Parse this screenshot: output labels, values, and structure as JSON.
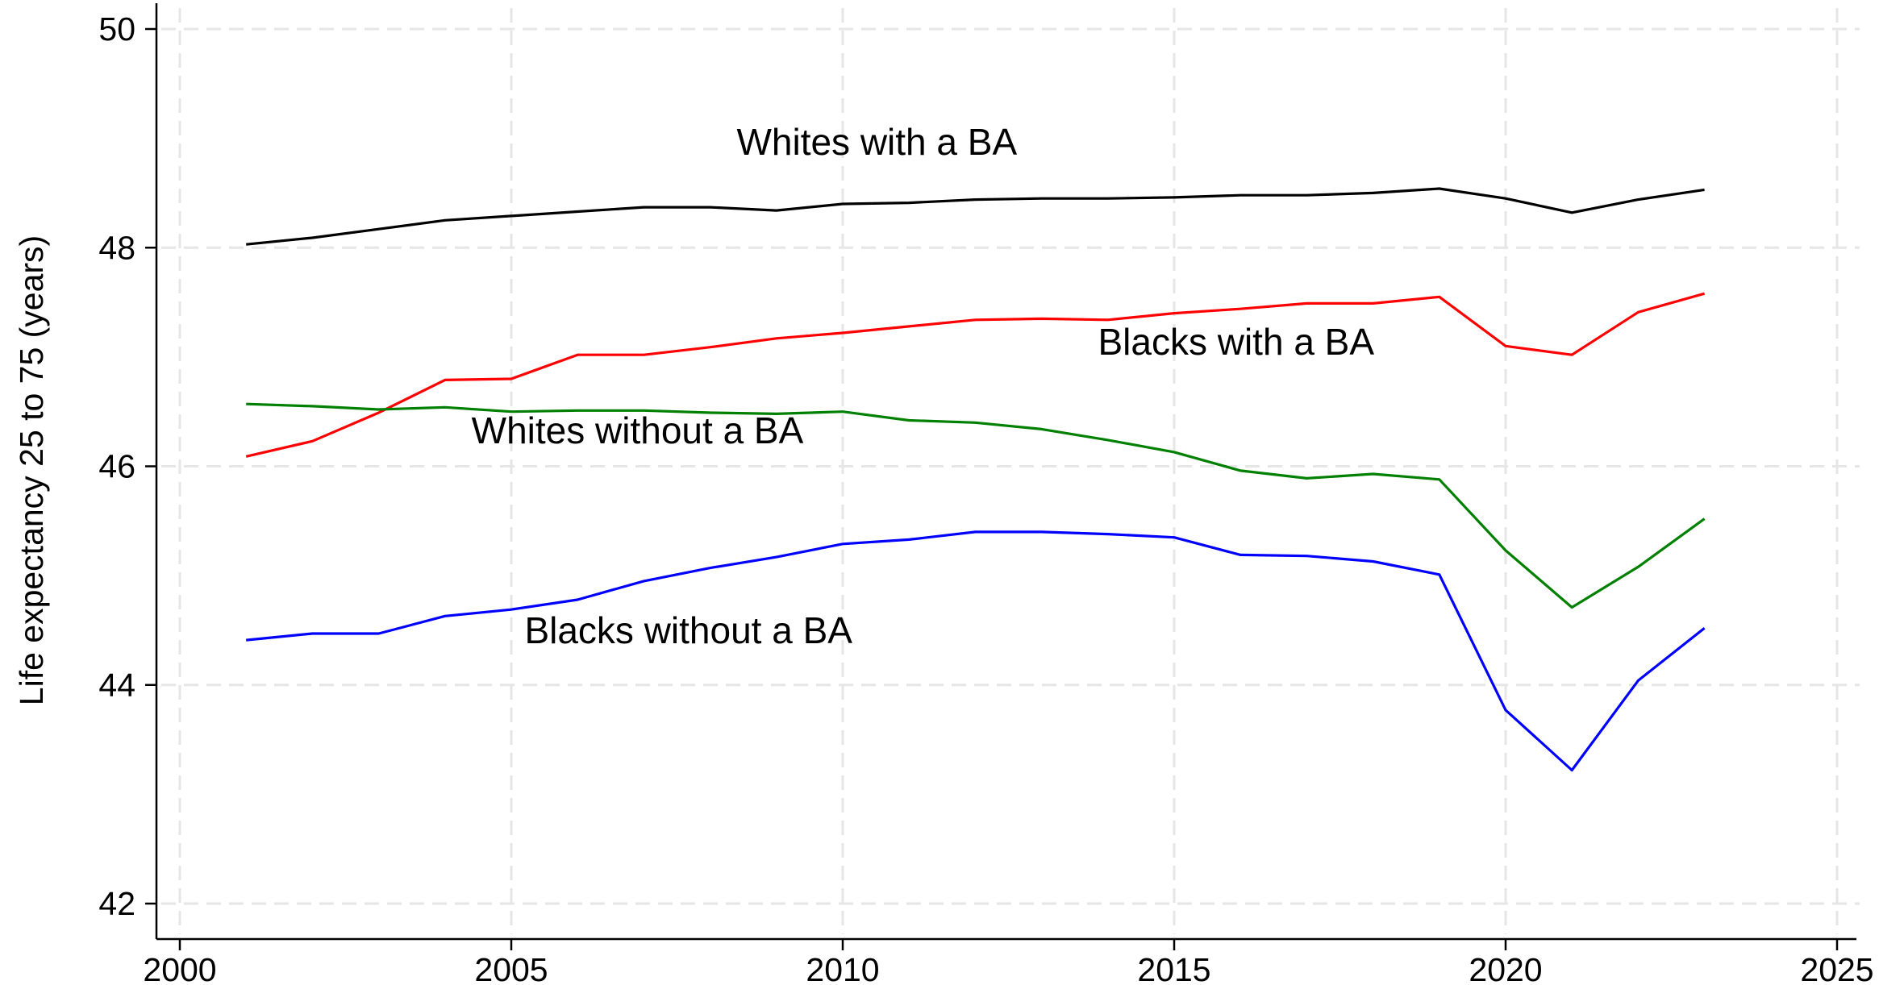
{
  "chart_data": {
    "type": "line",
    "title": "",
    "xlabel": "",
    "ylabel": "Life expectancy 25 to 75 (years)",
    "xlim": [
      2000,
      2025
    ],
    "ylim": [
      42,
      50
    ],
    "xticks": [
      2000,
      2005,
      2010,
      2015,
      2020,
      2025
    ],
    "yticks": [
      42,
      44,
      46,
      48,
      50
    ],
    "grid": true,
    "legend": "none",
    "x": [
      2001,
      2002,
      2003,
      2004,
      2005,
      2006,
      2007,
      2008,
      2009,
      2010,
      2011,
      2012,
      2013,
      2014,
      2015,
      2016,
      2017,
      2018,
      2019,
      2020,
      2021,
      2022,
      2023
    ],
    "series": [
      {
        "name": "Whites with a BA",
        "color": "#000000",
        "values": [
          48.03,
          48.09,
          48.17,
          48.25,
          48.29,
          48.33,
          48.37,
          48.37,
          48.34,
          48.4,
          48.41,
          48.44,
          48.45,
          48.45,
          48.46,
          48.48,
          48.48,
          48.5,
          48.54,
          48.45,
          48.32,
          48.44,
          48.53
        ]
      },
      {
        "name": "Blacks with a BA",
        "color": "#ff0000",
        "values": [
          46.09,
          46.23,
          46.49,
          46.79,
          46.8,
          47.02,
          47.02,
          47.09,
          47.17,
          47.22,
          47.28,
          47.34,
          47.35,
          47.34,
          47.4,
          47.44,
          47.49,
          47.49,
          47.55,
          47.1,
          47.02,
          47.41,
          47.58
        ]
      },
      {
        "name": "Whites without a BA",
        "color": "#008000",
        "values": [
          46.57,
          46.55,
          46.52,
          46.54,
          46.5,
          46.51,
          46.51,
          46.49,
          46.48,
          46.5,
          46.42,
          46.4,
          46.34,
          46.24,
          46.13,
          45.96,
          45.89,
          45.93,
          45.88,
          45.23,
          44.71,
          45.08,
          45.52
        ]
      },
      {
        "name": "Blacks without a BA",
        "color": "#0000ff",
        "values": [
          44.41,
          44.47,
          44.47,
          44.63,
          44.69,
          44.78,
          44.95,
          45.07,
          45.17,
          45.29,
          45.33,
          45.4,
          45.4,
          45.38,
          45.35,
          45.19,
          45.18,
          45.13,
          45.01,
          43.77,
          43.22,
          44.04,
          44.52
        ]
      }
    ],
    "annotations": [
      {
        "text": "Whites with a BA",
        "x": 2008.4,
        "y": 48.85
      },
      {
        "text": "Blacks with a BA",
        "x": 2013.85,
        "y": 47.02
      },
      {
        "text": "Whites without a BA",
        "x": 2004.4,
        "y": 46.21
      },
      {
        "text": "Blacks without a BA",
        "x": 2005.2,
        "y": 44.38
      }
    ]
  }
}
